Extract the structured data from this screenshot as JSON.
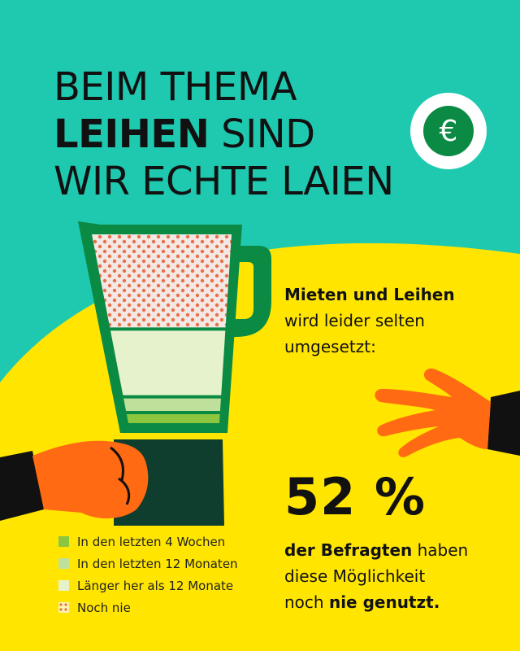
{
  "title": {
    "line1": "BEIM THEMA",
    "line2_bold": "LEIHEN",
    "line2_rest": " SIND",
    "line3": "WIR ECHTE LAIEN"
  },
  "icon": "euro-icon",
  "intro": {
    "bold": "Mieten und Leihen",
    "line2": "wird leider selten",
    "line3": "umgesetzt:"
  },
  "highlight": {
    "value": "52 %"
  },
  "description": {
    "line1_bold": "der Befragten",
    "line1_rest": " haben",
    "line2": "diese Möglichkeit",
    "line3_start": "noch ",
    "line3_bold": "nie genutzt."
  },
  "colors": {
    "teal": "#1ec9b0",
    "yellow": "#ffe500",
    "green": "#0a8a43",
    "orange": "#ff6a13"
  },
  "chart_data": {
    "type": "stacked-bar",
    "unit": "%",
    "categories": [
      "In den letzten 4 Wochen",
      "In den letzten 12 Monaten",
      "Länger her als 12 Monate",
      "Noch nie"
    ],
    "values": [
      5,
      7,
      36,
      52
    ],
    "colors": [
      "#8cc63f",
      "#bfe09b",
      "#e6f2cc",
      "#e8704b"
    ],
    "patterns": [
      "solid",
      "solid",
      "solid",
      "dots"
    ]
  }
}
